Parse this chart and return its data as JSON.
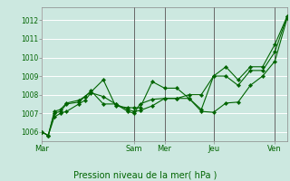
{
  "bg_color": "#cce8e0",
  "grid_color": "#ffffff",
  "line_color": "#006400",
  "marker_color": "#006400",
  "xlabel": "Pression niveau de la mer( hPa )",
  "ylim": [
    1005.5,
    1012.7
  ],
  "yticks": [
    1006,
    1007,
    1008,
    1009,
    1010,
    1011,
    1012
  ],
  "day_labels": [
    "Mar",
    "Sam",
    "Mer",
    "Jeu",
    "Ven"
  ],
  "day_positions": [
    0,
    0.375,
    0.5,
    0.7,
    0.95
  ],
  "vline_positions": [
    0.375,
    0.5,
    0.7,
    0.95
  ],
  "xlim": [
    0.0,
    1.0
  ],
  "series1_x": [
    0.0,
    0.025,
    0.05,
    0.075,
    0.1,
    0.15,
    0.175,
    0.2,
    0.25,
    0.3,
    0.35,
    0.375,
    0.4,
    0.45,
    0.5,
    0.55,
    0.6,
    0.65,
    0.7,
    0.75,
    0.8,
    0.85,
    0.9,
    0.95,
    1.0
  ],
  "series1_y": [
    1006.0,
    1005.8,
    1006.8,
    1007.0,
    1007.1,
    1007.5,
    1007.7,
    1008.1,
    1007.9,
    1007.5,
    1007.1,
    1007.0,
    1007.5,
    1007.75,
    1007.8,
    1007.8,
    1008.0,
    1008.0,
    1009.0,
    1009.0,
    1008.5,
    1009.3,
    1009.3,
    1010.3,
    1012.2
  ],
  "series2_x": [
    0.0,
    0.025,
    0.05,
    0.075,
    0.1,
    0.15,
    0.175,
    0.2,
    0.25,
    0.3,
    0.35,
    0.375,
    0.4,
    0.45,
    0.5,
    0.55,
    0.6,
    0.65,
    0.7,
    0.75,
    0.8,
    0.85,
    0.9,
    0.95,
    1.0
  ],
  "series2_y": [
    1006.0,
    1005.8,
    1007.0,
    1007.1,
    1007.5,
    1007.6,
    1007.9,
    1008.15,
    1008.8,
    1007.4,
    1007.3,
    1007.3,
    1007.3,
    1008.7,
    1008.35,
    1008.35,
    1007.8,
    1007.1,
    1007.05,
    1007.55,
    1007.6,
    1008.5,
    1009.0,
    1009.8,
    1012.1
  ],
  "series3_x": [
    0.0,
    0.025,
    0.05,
    0.075,
    0.1,
    0.15,
    0.175,
    0.2,
    0.25,
    0.3,
    0.35,
    0.375,
    0.4,
    0.45,
    0.5,
    0.55,
    0.6,
    0.65,
    0.7,
    0.75,
    0.8,
    0.85,
    0.9,
    0.95,
    1.0
  ],
  "series3_y": [
    1006.0,
    1005.8,
    1007.1,
    1007.2,
    1007.55,
    1007.7,
    1007.9,
    1008.2,
    1007.5,
    1007.5,
    1007.2,
    1007.1,
    1007.15,
    1007.4,
    1007.8,
    1007.8,
    1007.8,
    1007.2,
    1009.0,
    1009.5,
    1008.8,
    1009.5,
    1009.5,
    1010.7,
    1012.2
  ]
}
